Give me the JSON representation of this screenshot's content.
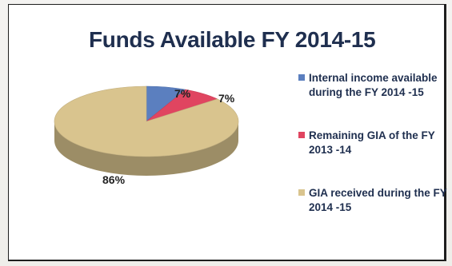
{
  "chart_data": {
    "type": "pie",
    "title": "Funds Available FY 2014-15",
    "categories": [
      "Internal income available during the FY 2014 -15",
      "Remaining GIA of the FY 2013 -14",
      "GIA received during the FY 2014 -15"
    ],
    "values": [
      7,
      7,
      86
    ],
    "labels": [
      "7%",
      "7%",
      "86%"
    ],
    "colors": [
      "#5b7fbf",
      "#e04560",
      "#d9c48e"
    ],
    "legend_position": "right",
    "three_d": true
  }
}
